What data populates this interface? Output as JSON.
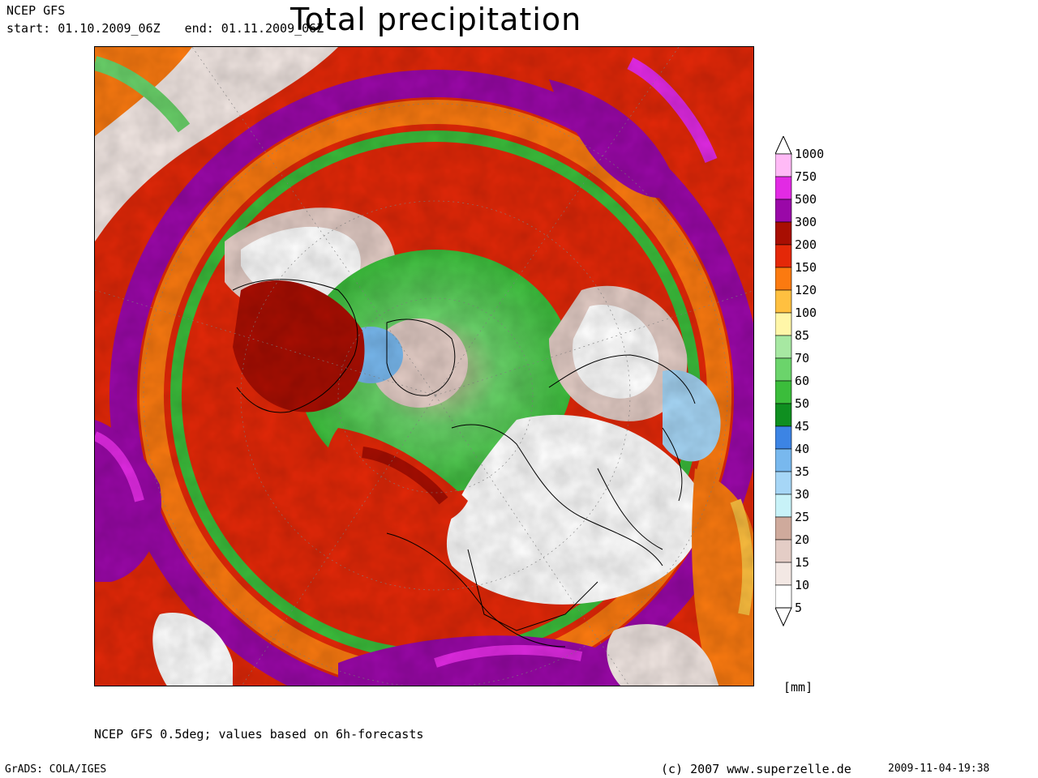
{
  "header": {
    "model": "NCEP GFS",
    "start": "start: 01.10.2009_06Z",
    "end": "end: 01.11.2009_06Z",
    "title": "Total precipitation"
  },
  "legend": {
    "unit": "[mm]",
    "bins": [
      {
        "label": "5",
        "color": "#ffffff"
      },
      {
        "label": "10",
        "color": "#f3e8e4"
      },
      {
        "label": "15",
        "color": "#e4cdc6"
      },
      {
        "label": "20",
        "color": "#cfaa9c"
      },
      {
        "label": "25",
        "color": "#c8f2f8"
      },
      {
        "label": "30",
        "color": "#a6d6f6"
      },
      {
        "label": "35",
        "color": "#78b8ee"
      },
      {
        "label": "40",
        "color": "#3c84e4"
      },
      {
        "label": "45",
        "color": "#0f8f20"
      },
      {
        "label": "50",
        "color": "#3bbd3b"
      },
      {
        "label": "60",
        "color": "#6bd46b"
      },
      {
        "label": "70",
        "color": "#a7e8a2"
      },
      {
        "label": "85",
        "color": "#fff6a8"
      },
      {
        "label": "100",
        "color": "#ffc040"
      },
      {
        "label": "120",
        "color": "#fb7a10"
      },
      {
        "label": "150",
        "color": "#e42808"
      },
      {
        "label": "200",
        "color": "#a80e02"
      },
      {
        "label": "300",
        "color": "#9a08a8"
      },
      {
        "label": "500",
        "color": "#e22ae4"
      },
      {
        "label": "750",
        "color": "#ffbaf6"
      },
      {
        "label": "1000",
        "color": "#ffffff"
      }
    ]
  },
  "footer": {
    "footnote": "NCEP GFS 0.5deg; values based on 6h-forecasts",
    "software": "GrADS: COLA/IGES",
    "copyright": "(c) 2007 www.superzelle.de",
    "timestamp": "2009-11-04-19:38"
  }
}
